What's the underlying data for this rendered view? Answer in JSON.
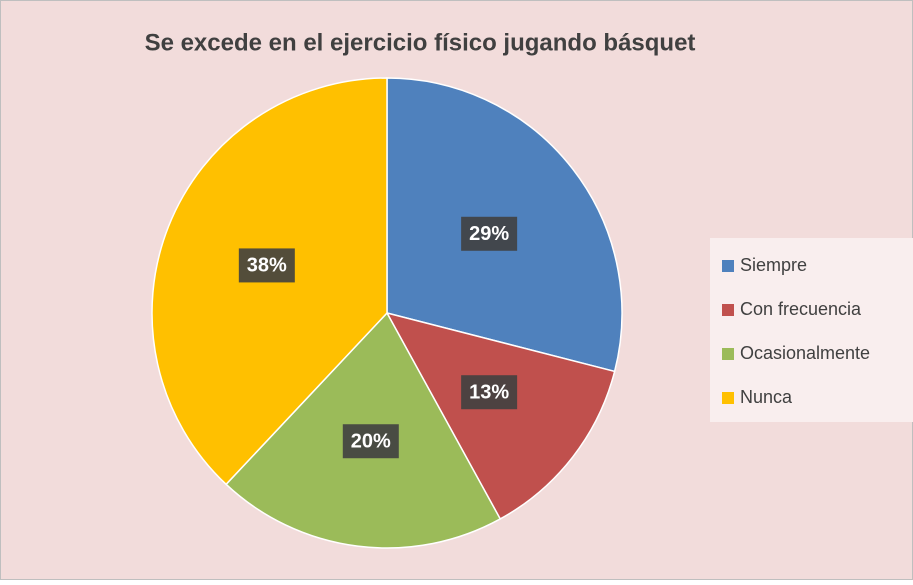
{
  "chart_data": {
    "type": "pie",
    "title": "Se excede en el ejercicio físico jugando básquet",
    "categories": [
      "Siempre",
      "Con frecuencia",
      "Ocasionalmente",
      "Nunca"
    ],
    "values": [
      29,
      13,
      20,
      38
    ],
    "value_labels": [
      "29%",
      "13%",
      "20%",
      "38%"
    ],
    "colors": [
      "#4f81bd",
      "#c0504d",
      "#9bbb59",
      "#ffc000"
    ],
    "legend": "right"
  }
}
